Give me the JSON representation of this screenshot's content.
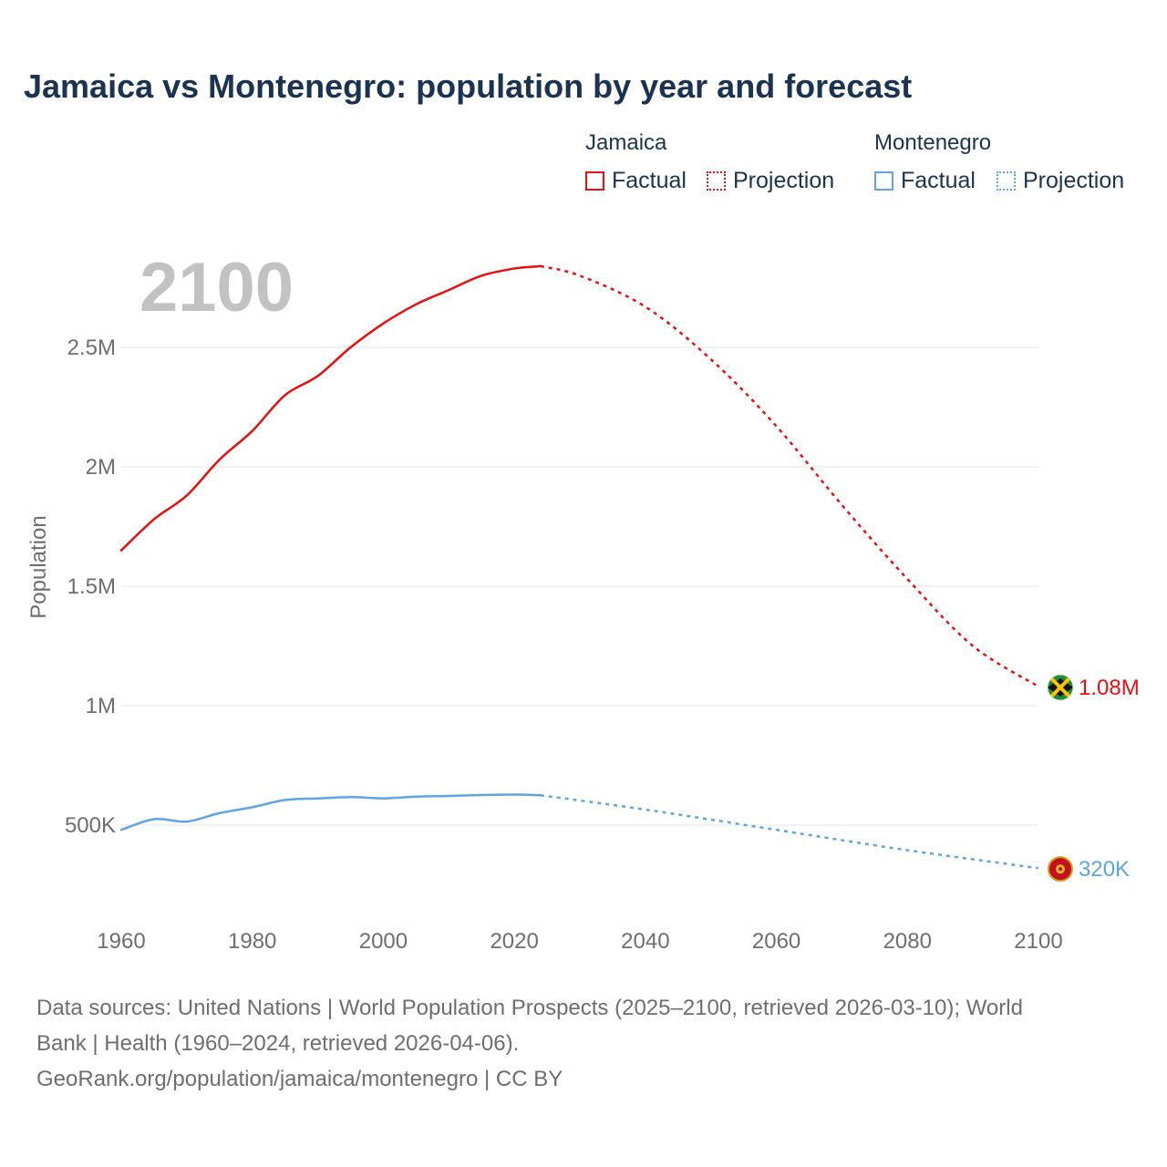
{
  "title": "Jamaica vs Montenegro: population by year and forecast",
  "legend": {
    "groups": [
      {
        "name": "Jamaica",
        "color": "#e8100f",
        "factual_label": "Factual",
        "projection_label": "Projection"
      },
      {
        "name": "Montenegro",
        "color": "#5ea5e4",
        "factual_label": "Factual",
        "projection_label": "Projection"
      }
    ]
  },
  "year_label": "2100",
  "footer": {
    "line1": "Data sources: United Nations | World Population Prospects (2025–2100, retrieved 2026-03-10); World",
    "line2": "Bank | Health (1960–2024, retrieved 2026-04-06).",
    "line3": "GeoRank.org/population/jamaica/montenegro | CC BY"
  },
  "chart_data": {
    "type": "line",
    "title": "Jamaica vs Montenegro: population by year and forecast",
    "xlabel": "",
    "ylabel": "Population",
    "xlim": [
      1960,
      2100
    ],
    "ylim": [
      300000,
      2900000
    ],
    "x_ticks": [
      1960,
      1980,
      2000,
      2020,
      2040,
      2060,
      2080,
      2100
    ],
    "y_ticks": [
      {
        "value": 500000,
        "label": "500K"
      },
      {
        "value": 1000000,
        "label": "1M"
      },
      {
        "value": 1500000,
        "label": "1.5M"
      },
      {
        "value": 2000000,
        "label": "2M"
      },
      {
        "value": 2500000,
        "label": "2.5M"
      }
    ],
    "grid": true,
    "series": [
      {
        "name": "Jamaica",
        "color": "#e8100f",
        "end_label": "1.08M",
        "factual": {
          "x": [
            1960,
            1965,
            1970,
            1975,
            1980,
            1985,
            1990,
            1995,
            2000,
            2005,
            2010,
            2015,
            2020,
            2024
          ],
          "y": [
            1650000,
            1780000,
            1880000,
            2030000,
            2150000,
            2300000,
            2380000,
            2500000,
            2600000,
            2680000,
            2740000,
            2800000,
            2830000,
            2840000
          ]
        },
        "projection": {
          "x": [
            2024,
            2030,
            2040,
            2050,
            2060,
            2070,
            2080,
            2090,
            2100
          ],
          "y": [
            2840000,
            2800000,
            2670000,
            2450000,
            2170000,
            1840000,
            1530000,
            1250000,
            1080000
          ]
        }
      },
      {
        "name": "Montenegro",
        "color": "#5ea5e4",
        "end_label": "320K",
        "factual": {
          "x": [
            1960,
            1965,
            1970,
            1975,
            1980,
            1985,
            1990,
            1995,
            2000,
            2005,
            2010,
            2015,
            2020,
            2024
          ],
          "y": [
            480000,
            525000,
            515000,
            550000,
            575000,
            605000,
            612000,
            617000,
            612000,
            619000,
            622000,
            626000,
            628000,
            625000
          ]
        },
        "projection": {
          "x": [
            2024,
            2040,
            2060,
            2080,
            2100
          ],
          "y": [
            625000,
            565000,
            480000,
            395000,
            320000
          ]
        }
      }
    ]
  }
}
